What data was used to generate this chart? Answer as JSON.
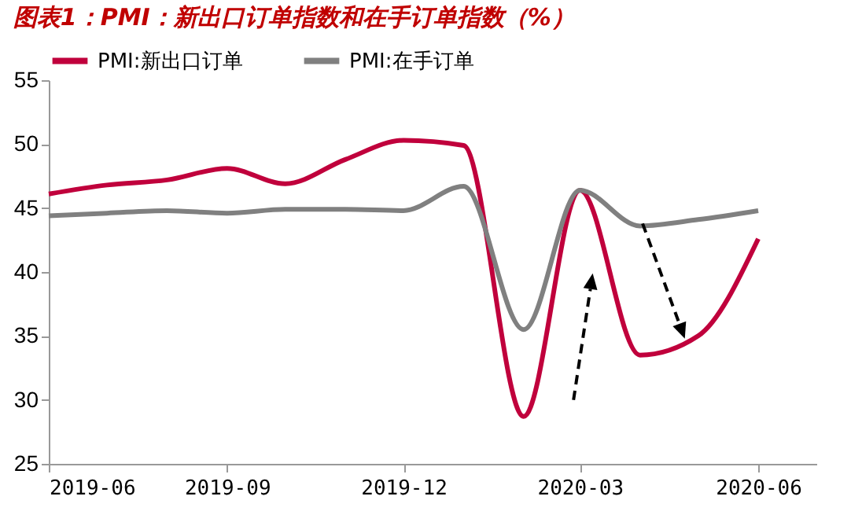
{
  "chart_data": {
    "type": "line",
    "title": "图表1：PMI：新出口订单指数和在手订单指数（%）",
    "x": [
      "2019-06",
      "2019-07",
      "2019-08",
      "2019-09",
      "2019-10",
      "2019-11",
      "2019-12",
      "2020-01",
      "2020-02",
      "2020-03",
      "2020-04",
      "2020-05",
      "2020-06"
    ],
    "series": [
      {
        "name": "PMI:新出口订单",
        "color": "#c0003c",
        "values": [
          46.1,
          46.8,
          47.2,
          48.1,
          46.9,
          48.8,
          50.3,
          49.9,
          28.7,
          46.4,
          33.5,
          35.0,
          42.6
        ]
      },
      {
        "name": "PMI:在手订单",
        "color": "#808080",
        "values": [
          44.4,
          44.6,
          44.8,
          44.6,
          44.9,
          44.9,
          44.8,
          46.7,
          35.5,
          46.4,
          43.6,
          44.1,
          44.8
        ]
      }
    ],
    "xlim": [
      "2019-06",
      "2020-07"
    ],
    "xticks": [
      "2019-06",
      "2019-09",
      "2019-12",
      "2020-03",
      "2020-06"
    ],
    "ylim": [
      25,
      55
    ],
    "yticks": [
      25,
      30,
      35,
      40,
      45,
      50,
      55
    ],
    "legend": "top",
    "grid": false,
    "marker": "none",
    "line_style": "solid"
  }
}
